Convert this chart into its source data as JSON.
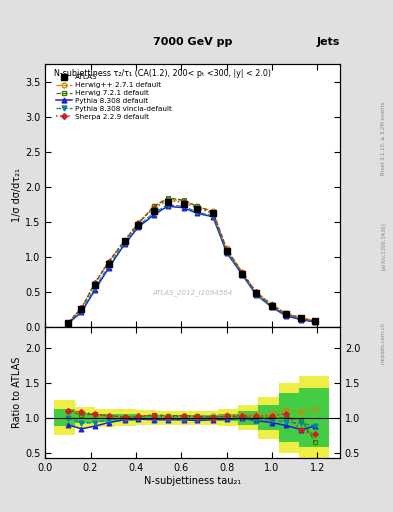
{
  "title_top": "7000 GeV pp",
  "title_right": "Jets",
  "subtitle": "N-subjettiness τ₂/τ₁ (CA(1.2), 200< pₜ <300, |y| < 2.0)",
  "watermark": "ATLAS_2012_I1094564",
  "rivet_label": "Rivet 3.1.10, ≥ 3.2M events",
  "arxiv_label": "[arXiv:1306.3436]",
  "mcplots_label": "mcplots.cern.ch",
  "ylabel_main": "1/σ dσ/dτ₂₁",
  "ylabel_ratio": "Ratio to ATLAS",
  "xlabel": "N-subjettiness tau₂₁",
  "xlim": [
    0,
    1.3
  ],
  "ylim_main": [
    0,
    3.75
  ],
  "ylim_ratio": [
    0.42,
    2.3
  ],
  "yticks_main": [
    0,
    0.5,
    1.0,
    1.5,
    2.0,
    2.5,
    3.0,
    3.5
  ],
  "yticks_ratio": [
    0.5,
    1.0,
    1.5,
    2.0
  ],
  "x_atlas": [
    0.1,
    0.16,
    0.22,
    0.28,
    0.35,
    0.41,
    0.48,
    0.54,
    0.61,
    0.67,
    0.74,
    0.8,
    0.87,
    0.93,
    1.0,
    1.06,
    1.13,
    1.19
  ],
  "y_atlas": [
    0.05,
    0.25,
    0.6,
    0.9,
    1.22,
    1.45,
    1.65,
    1.78,
    1.75,
    1.68,
    1.62,
    1.08,
    0.75,
    0.48,
    0.3,
    0.18,
    0.12,
    0.08
  ],
  "x_herwig_pp": [
    0.1,
    0.16,
    0.22,
    0.28,
    0.35,
    0.41,
    0.48,
    0.54,
    0.61,
    0.67,
    0.74,
    0.8,
    0.87,
    0.93,
    1.0,
    1.06,
    1.13,
    1.19
  ],
  "y_herwig_pp": [
    0.055,
    0.27,
    0.62,
    0.92,
    1.22,
    1.48,
    1.72,
    1.82,
    1.8,
    1.72,
    1.65,
    1.12,
    0.78,
    0.5,
    0.32,
    0.2,
    0.13,
    0.09
  ],
  "x_herwig721": [
    0.1,
    0.16,
    0.22,
    0.28,
    0.35,
    0.41,
    0.48,
    0.54,
    0.61,
    0.67,
    0.74,
    0.8,
    0.87,
    0.93,
    1.0,
    1.06,
    1.13,
    1.19
  ],
  "y_herwig721": [
    0.055,
    0.26,
    0.63,
    0.93,
    1.23,
    1.47,
    1.72,
    1.84,
    1.81,
    1.72,
    1.64,
    1.1,
    0.76,
    0.48,
    0.3,
    0.18,
    0.12,
    0.08
  ],
  "x_pythia8308": [
    0.1,
    0.16,
    0.22,
    0.28,
    0.35,
    0.41,
    0.48,
    0.54,
    0.61,
    0.67,
    0.74,
    0.8,
    0.87,
    0.93,
    1.0,
    1.06,
    1.13,
    1.19
  ],
  "y_pythia8308": [
    0.045,
    0.21,
    0.53,
    0.84,
    1.18,
    1.42,
    1.6,
    1.72,
    1.7,
    1.62,
    1.57,
    1.06,
    0.74,
    0.46,
    0.28,
    0.16,
    0.1,
    0.07
  ],
  "x_pythia_vincia": [
    0.1,
    0.16,
    0.22,
    0.28,
    0.35,
    0.41,
    0.48,
    0.54,
    0.61,
    0.67,
    0.74,
    0.8,
    0.87,
    0.93,
    1.0,
    1.06,
    1.13,
    1.19
  ],
  "y_pythia_vincia": [
    0.05,
    0.23,
    0.56,
    0.87,
    1.2,
    1.44,
    1.63,
    1.74,
    1.72,
    1.64,
    1.58,
    1.07,
    0.74,
    0.46,
    0.29,
    0.17,
    0.11,
    0.07
  ],
  "x_sherpa": [
    0.1,
    0.16,
    0.22,
    0.28,
    0.35,
    0.41,
    0.48,
    0.54,
    0.61,
    0.67,
    0.74,
    0.8,
    0.87,
    0.93,
    1.0,
    1.06,
    1.13,
    1.19
  ],
  "y_sherpa": [
    0.055,
    0.27,
    0.63,
    0.93,
    1.23,
    1.48,
    1.7,
    1.8,
    1.78,
    1.7,
    1.62,
    1.1,
    0.77,
    0.49,
    0.31,
    0.19,
    0.12,
    0.08
  ],
  "ratio_herwig_pp": [
    1.1,
    1.08,
    1.03,
    1.02,
    1.0,
    1.02,
    1.04,
    1.02,
    1.03,
    1.02,
    1.02,
    1.04,
    1.04,
    1.04,
    1.07,
    1.11,
    1.08,
    1.12
  ],
  "ratio_herwig721": [
    1.1,
    1.04,
    1.05,
    1.03,
    1.01,
    1.01,
    1.04,
    1.03,
    1.03,
    1.02,
    1.01,
    1.02,
    1.01,
    1.0,
    1.0,
    1.0,
    0.97,
    0.65
  ],
  "ratio_pythia8308": [
    0.9,
    0.84,
    0.88,
    0.93,
    0.97,
    0.98,
    0.97,
    0.97,
    0.97,
    0.96,
    0.97,
    0.98,
    0.99,
    0.96,
    0.93,
    0.89,
    0.83,
    0.88
  ],
  "ratio_pythia_vincia": [
    1.0,
    0.92,
    0.93,
    0.97,
    0.98,
    0.99,
    0.99,
    0.98,
    0.98,
    0.98,
    0.98,
    0.99,
    0.99,
    0.96,
    0.97,
    0.94,
    0.92,
    0.88
  ],
  "ratio_sherpa": [
    1.1,
    1.08,
    1.05,
    1.03,
    1.01,
    1.02,
    1.03,
    1.01,
    1.02,
    1.01,
    1.0,
    1.02,
    1.03,
    1.02,
    1.03,
    1.06,
    0.82,
    0.76
  ],
  "band_x_edges": [
    0.04,
    0.13,
    0.22,
    0.31,
    0.4,
    0.49,
    0.58,
    0.67,
    0.76,
    0.85,
    0.94,
    1.03,
    1.12,
    1.25
  ],
  "band_green_lo": [
    0.88,
    0.93,
    0.94,
    0.95,
    0.96,
    0.96,
    0.96,
    0.96,
    0.95,
    0.9,
    0.82,
    0.65,
    0.58,
    0.58
  ],
  "band_green_hi": [
    1.12,
    1.07,
    1.06,
    1.05,
    1.04,
    1.04,
    1.04,
    1.04,
    1.05,
    1.1,
    1.18,
    1.35,
    1.42,
    1.42
  ],
  "band_yellow_lo": [
    0.75,
    0.85,
    0.87,
    0.88,
    0.89,
    0.9,
    0.9,
    0.9,
    0.88,
    0.82,
    0.7,
    0.5,
    0.42,
    0.42
  ],
  "band_yellow_hi": [
    1.25,
    1.15,
    1.13,
    1.12,
    1.11,
    1.1,
    1.1,
    1.1,
    1.12,
    1.18,
    1.3,
    1.5,
    1.6,
    1.6
  ],
  "color_herwig_pp": "#cc8800",
  "color_herwig721": "#447700",
  "color_pythia8308": "#2222cc",
  "color_pythia_vincia": "#008899",
  "color_sherpa": "#cc2222",
  "color_atlas": "#000000",
  "color_green_band": "#44cc44",
  "color_yellow_band": "#eeee44",
  "plot_bg": "#ffffff",
  "fig_bg": "#e0e0e0"
}
